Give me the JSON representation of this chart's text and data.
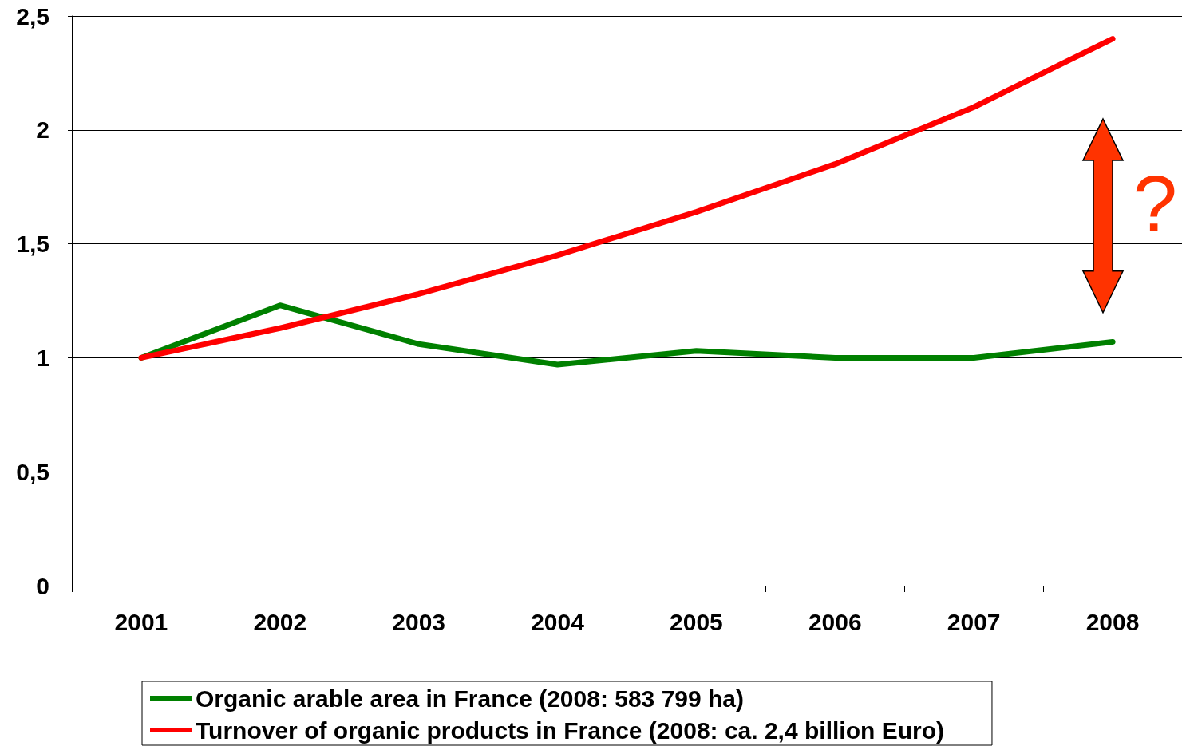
{
  "chart_data": {
    "type": "line",
    "categories": [
      "2001",
      "2002",
      "2003",
      "2004",
      "2005",
      "2006",
      "2007",
      "2008"
    ],
    "series": [
      {
        "name": "Organic arable area in France (2008: 583 799 ha)",
        "color": "#008000",
        "values": [
          1.0,
          1.23,
          1.06,
          0.97,
          1.03,
          1.0,
          1.0,
          1.07
        ]
      },
      {
        "name": "Turnover of organic products in France (2008: ca. 2,4 billion Euro)",
        "color": "#ff0000",
        "values": [
          1.0,
          1.13,
          1.28,
          1.45,
          1.64,
          1.85,
          2.1,
          2.4
        ]
      }
    ],
    "ylim": [
      0,
      2.5
    ],
    "yticks": [
      0,
      {
        "value": 0.5,
        "label": "0,5"
      },
      1,
      {
        "value": 1.5,
        "label": "1,5"
      },
      2,
      {
        "value": 2.5,
        "label": "2,5"
      }
    ],
    "grid": "y",
    "legend": "bottom",
    "marker": "none",
    "line_style": "solid",
    "annotations": [
      "?"
    ]
  }
}
